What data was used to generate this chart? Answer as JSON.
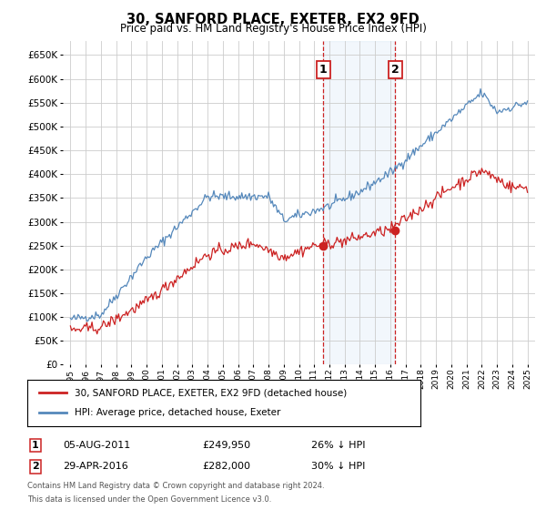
{
  "title": "30, SANFORD PLACE, EXETER, EX2 9FD",
  "subtitle": "Price paid vs. HM Land Registry's House Price Index (HPI)",
  "legend_line1": "30, SANFORD PLACE, EXETER, EX2 9FD (detached house)",
  "legend_line2": "HPI: Average price, detached house, Exeter",
  "annotation1": {
    "label": "1",
    "date": "05-AUG-2011",
    "price": "£249,950",
    "pct": "26% ↓ HPI",
    "x_year": 2011.6
  },
  "annotation2": {
    "label": "2",
    "date": "29-APR-2016",
    "price": "£282,000",
    "pct": "30% ↓ HPI",
    "x_year": 2016.33
  },
  "point1_price": 249950,
  "point2_price": 282000,
  "hpi_color": "#5588bb",
  "price_color": "#cc2222",
  "ann_box_color": "#cc2222",
  "ann_vline_color": "#cc2222",
  "ann_fill_color": "#ddeeff",
  "background_color": "#ffffff",
  "grid_color": "#cccccc",
  "ylim": [
    0,
    680000
  ],
  "yticks": [
    0,
    50000,
    100000,
    150000,
    200000,
    250000,
    300000,
    350000,
    400000,
    450000,
    500000,
    550000,
    600000,
    650000
  ],
  "xlim_start": 1994.5,
  "xlim_end": 2025.5,
  "footer_line1": "Contains HM Land Registry data © Crown copyright and database right 2024.",
  "footer_line2": "This data is licensed under the Open Government Licence v3.0."
}
